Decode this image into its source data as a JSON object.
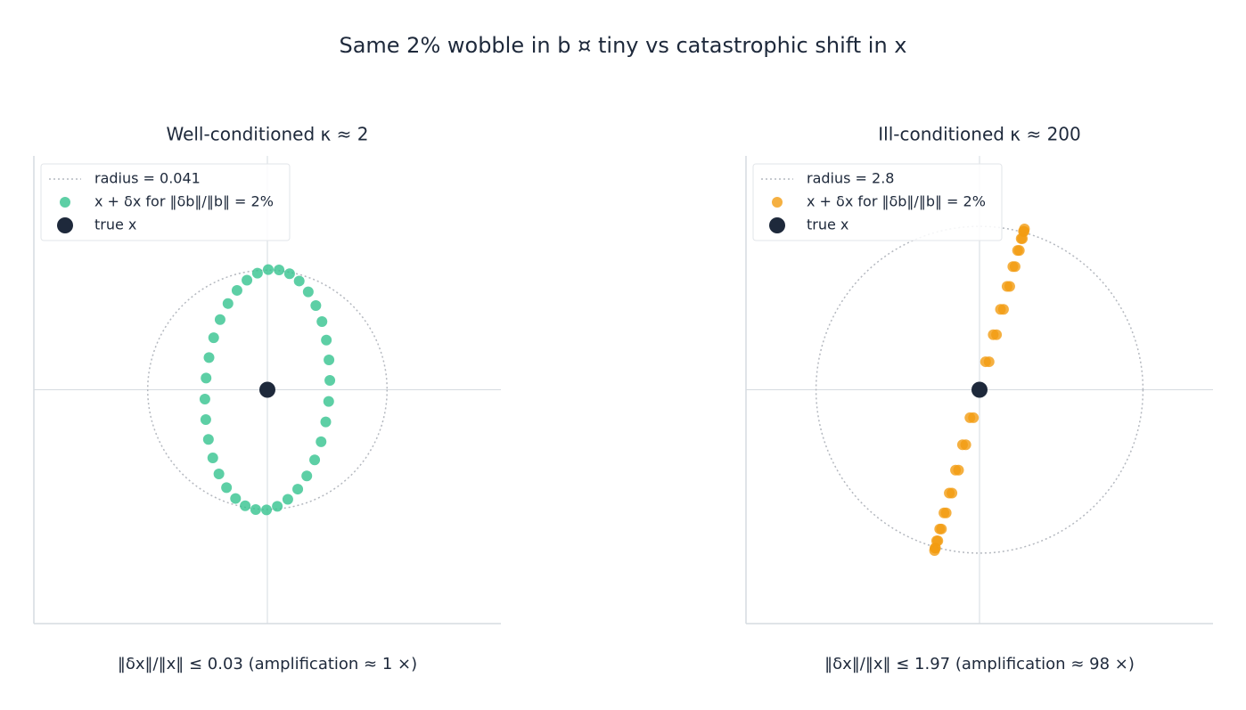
{
  "title": "Same 2% wobble in b ¤ tiny vs catastrophic shift in x",
  "chart_data": [
    {
      "type": "scatter",
      "title": "Well-conditioned  κ ≈ 2",
      "xlabel": "‖δx‖/‖x‖ ≤ 0.03  (amplification ≈ 1 ×)",
      "xlim": [
        -0.08,
        0.08
      ],
      "ylim": [
        -0.08,
        0.08
      ],
      "legend": "upper left",
      "series": [
        {
          "name": "radius = 0.041",
          "kind": "circle",
          "radius": 0.041,
          "color": "#b4b8bf"
        },
        {
          "name": "x + δx for ‖δb‖/‖b‖ = 2%",
          "kind": "points",
          "color": "#34c38f",
          "x": [
            0.004,
            0.0076,
            0.0109,
            0.014,
            0.0166,
            0.0187,
            0.0202,
            0.0211,
            0.0214,
            0.021,
            0.02,
            0.0184,
            0.0162,
            0.0135,
            0.0104,
            0.007,
            0.0034,
            -0.0003,
            -0.004,
            -0.0076,
            -0.0109,
            -0.014,
            -0.0166,
            -0.0187,
            -0.0202,
            -0.0211,
            -0.0214,
            -0.021,
            -0.02,
            -0.0184,
            -0.0162,
            -0.0135,
            -0.0104,
            -0.007,
            -0.0034,
            0.0003
          ],
          "y": [
            0.041,
            0.0397,
            0.0372,
            0.0335,
            0.0288,
            0.0233,
            0.017,
            0.0102,
            0.0032,
            -0.004,
            -0.011,
            -0.0178,
            -0.024,
            -0.0295,
            -0.034,
            -0.0375,
            -0.0399,
            -0.0411,
            -0.041,
            -0.0397,
            -0.0372,
            -0.0335,
            -0.0288,
            -0.0233,
            -0.017,
            -0.0102,
            -0.0032,
            0.004,
            0.011,
            0.0178,
            0.024,
            0.0295,
            0.034,
            0.0375,
            0.0399,
            0.0411
          ]
        },
        {
          "name": "true x",
          "kind": "point",
          "color": "#1e293b",
          "x": [
            0
          ],
          "y": [
            0
          ]
        }
      ]
    },
    {
      "type": "scatter",
      "title": "Ill-conditioned  κ ≈ 200",
      "xlabel": "‖δx‖/‖x‖ ≤ 1.97  (amplification ≈ 98 ×)",
      "xlim": [
        -4,
        4
      ],
      "ylim": [
        -4,
        4
      ],
      "legend": "upper left",
      "series": [
        {
          "name": "radius = 2.8",
          "kind": "circle",
          "radius": 2.8,
          "color": "#b4b8bf"
        },
        {
          "name": "x + δx for ‖δb‖/‖b‖ = 2%",
          "kind": "points",
          "color": "#f39c12",
          "x": [
            0.77,
            0.763,
            0.734,
            0.682,
            0.609,
            0.518,
            0.411,
            0.291,
            0.164,
            0.03,
            -0.104,
            -0.235,
            -0.359,
            -0.472,
            -0.571,
            -0.652,
            -0.714,
            -0.753,
            -0.77,
            -0.763,
            -0.734,
            -0.682,
            -0.609,
            -0.518,
            -0.411,
            -0.291,
            -0.164,
            -0.03,
            0.104,
            0.235,
            0.359,
            0.472,
            0.571,
            0.652,
            0.714,
            0.753
          ],
          "y": [
            2.75,
            2.709,
            2.585,
            2.382,
            2.107,
            1.768,
            1.375,
            0.941,
            0.479,
            0,
            -0.479,
            -0.941,
            -1.375,
            -1.768,
            -2.107,
            -2.382,
            -2.585,
            -2.709,
            -2.75,
            -2.709,
            -2.585,
            -2.382,
            -2.107,
            -1.768,
            -1.375,
            -0.941,
            -0.479,
            0,
            0.479,
            0.941,
            1.375,
            1.768,
            2.107,
            2.382,
            2.585,
            2.709
          ]
        },
        {
          "name": "true x",
          "kind": "point",
          "color": "#1e293b",
          "x": [
            0
          ],
          "y": [
            0
          ]
        }
      ]
    }
  ]
}
